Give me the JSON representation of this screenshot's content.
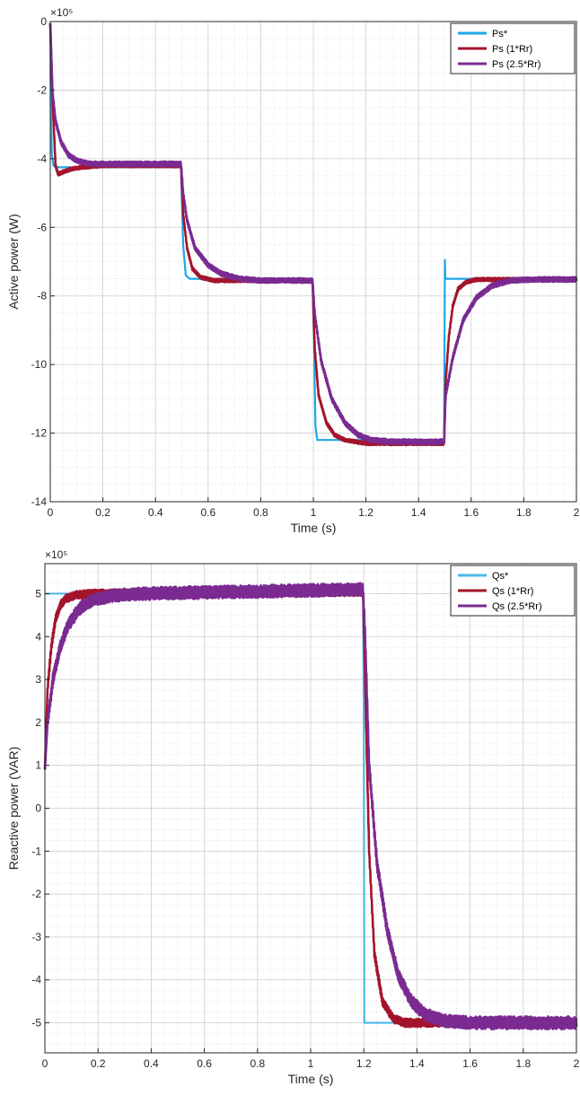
{
  "chart_data": [
    {
      "type": "line",
      "xlabel": "Time (s)",
      "ylabel": "Active power (W)",
      "exponent_label": "×10⁵",
      "xlim": [
        0,
        2
      ],
      "ylim": [
        -14,
        0
      ],
      "y_scale_factor": 100000,
      "xticks": [
        "0",
        "0.2",
        "0.4",
        "0.6",
        "0.8",
        "1",
        "1.2",
        "1.4",
        "1.6",
        "1.8",
        "2"
      ],
      "yticks": [
        "-14",
        "-12",
        "-10",
        "-8",
        "-6",
        "-4",
        "-2",
        "0"
      ],
      "grid": true,
      "minor_grid": true,
      "legend_position": "top-right",
      "series": [
        {
          "name": "Ps*",
          "color": "#1fa7e6",
          "points": [
            [
              0,
              -0.05
            ],
            [
              0.002,
              -2.5
            ],
            [
              0.006,
              -3.9
            ],
            [
              0.012,
              -4.2
            ],
            [
              0.02,
              -4.25
            ],
            [
              0.497,
              -4.25
            ],
            [
              0.505,
              -6.5
            ],
            [
              0.515,
              -7.4
            ],
            [
              0.53,
              -7.5
            ],
            [
              0.997,
              -7.5
            ],
            [
              1.003,
              -9.5
            ],
            [
              1.008,
              -11.8
            ],
            [
              1.015,
              -12.2
            ],
            [
              1.497,
              -12.2
            ],
            [
              1.5,
              -6.95
            ],
            [
              1.502,
              -7.5
            ],
            [
              2.0,
              -7.5
            ]
          ]
        },
        {
          "name": "Ps (1*Rr)",
          "color": "#a3142c",
          "noise": 0.05,
          "points": [
            [
              0,
              -0.05
            ],
            [
              0.01,
              -2.5
            ],
            [
              0.02,
              -4.2
            ],
            [
              0.03,
              -4.45
            ],
            [
              0.05,
              -4.38
            ],
            [
              0.08,
              -4.3
            ],
            [
              0.12,
              -4.25
            ],
            [
              0.2,
              -4.2
            ],
            [
              0.497,
              -4.2
            ],
            [
              0.505,
              -5.6
            ],
            [
              0.52,
              -6.6
            ],
            [
              0.54,
              -7.2
            ],
            [
              0.57,
              -7.45
            ],
            [
              0.62,
              -7.55
            ],
            [
              0.7,
              -7.55
            ],
            [
              0.997,
              -7.55
            ],
            [
              1.005,
              -9.5
            ],
            [
              1.02,
              -10.9
            ],
            [
              1.05,
              -11.7
            ],
            [
              1.08,
              -12.05
            ],
            [
              1.12,
              -12.2
            ],
            [
              1.2,
              -12.3
            ],
            [
              1.497,
              -12.3
            ],
            [
              1.503,
              -10.5
            ],
            [
              1.515,
              -9.2
            ],
            [
              1.53,
              -8.3
            ],
            [
              1.55,
              -7.8
            ],
            [
              1.58,
              -7.6
            ],
            [
              1.62,
              -7.52
            ],
            [
              2.0,
              -7.52
            ]
          ]
        },
        {
          "name": "Ps (2.5*Rr)",
          "color": "#7a2a91",
          "noise": 0.07,
          "points": [
            [
              0,
              -0.05
            ],
            [
              0.008,
              -2.0
            ],
            [
              0.02,
              -2.9
            ],
            [
              0.04,
              -3.5
            ],
            [
              0.07,
              -3.9
            ],
            [
              0.1,
              -4.05
            ],
            [
              0.15,
              -4.15
            ],
            [
              0.2,
              -4.15
            ],
            [
              0.497,
              -4.15
            ],
            [
              0.505,
              -5.0
            ],
            [
              0.52,
              -5.8
            ],
            [
              0.55,
              -6.6
            ],
            [
              0.6,
              -7.1
            ],
            [
              0.65,
              -7.35
            ],
            [
              0.72,
              -7.5
            ],
            [
              0.8,
              -7.55
            ],
            [
              0.997,
              -7.55
            ],
            [
              1.005,
              -8.5
            ],
            [
              1.03,
              -9.9
            ],
            [
              1.07,
              -11.0
            ],
            [
              1.12,
              -11.7
            ],
            [
              1.17,
              -12.05
            ],
            [
              1.22,
              -12.2
            ],
            [
              1.3,
              -12.25
            ],
            [
              1.497,
              -12.25
            ],
            [
              1.503,
              -10.9
            ],
            [
              1.53,
              -9.8
            ],
            [
              1.57,
              -8.7
            ],
            [
              1.62,
              -8.05
            ],
            [
              1.68,
              -7.7
            ],
            [
              1.75,
              -7.55
            ],
            [
              1.85,
              -7.52
            ],
            [
              2.0,
              -7.52
            ]
          ]
        }
      ]
    },
    {
      "type": "line",
      "xlabel": "Time (s)",
      "ylabel": "Reactive power (VAR)",
      "exponent_label": "×10⁵",
      "xlim": [
        0,
        2
      ],
      "ylim": [
        -5.7,
        5.7
      ],
      "y_scale_factor": 100000,
      "xticks": [
        "0",
        "0.2",
        "0.4",
        "0.6",
        "0.8",
        "1",
        "1.2",
        "1.4",
        "1.6",
        "1.8",
        "2"
      ],
      "yticks": [
        "-5",
        "-4",
        "-3",
        "-2",
        "-1",
        "0",
        "1",
        "2",
        "3",
        "4",
        "5"
      ],
      "grid": true,
      "minor_grid": true,
      "legend_position": "top-right",
      "series": [
        {
          "name": "Qs*",
          "color": "#4db8e8",
          "points": [
            [
              0,
              5.0
            ],
            [
              1.197,
              5.0
            ],
            [
              1.2,
              2.0
            ],
            [
              1.202,
              -5.0
            ],
            [
              2.0,
              -5.0
            ]
          ]
        },
        {
          "name": "Qs (1*Rr)",
          "color": "#a3142c",
          "noise": 0.1,
          "points": [
            [
              0,
              0.9
            ],
            [
              0.01,
              2.8
            ],
            [
              0.025,
              3.8
            ],
            [
              0.04,
              4.4
            ],
            [
              0.06,
              4.75
            ],
            [
              0.08,
              4.9
            ],
            [
              0.12,
              4.97
            ],
            [
              0.2,
              5.0
            ],
            [
              1.197,
              5.05
            ],
            [
              1.205,
              3.0
            ],
            [
              1.22,
              -1.0
            ],
            [
              1.24,
              -3.4
            ],
            [
              1.27,
              -4.5
            ],
            [
              1.31,
              -4.9
            ],
            [
              1.35,
              -5.0
            ],
            [
              2.0,
              -5.0
            ]
          ]
        },
        {
          "name": "Qs (2.5*Rr)",
          "color": "#7a2a91",
          "noise": 0.15,
          "points": [
            [
              0,
              0.9
            ],
            [
              0.01,
              2.0
            ],
            [
              0.03,
              3.0
            ],
            [
              0.06,
              3.8
            ],
            [
              0.09,
              4.3
            ],
            [
              0.13,
              4.65
            ],
            [
              0.18,
              4.85
            ],
            [
              0.25,
              4.95
            ],
            [
              0.35,
              5.0
            ],
            [
              1.197,
              5.1
            ],
            [
              1.205,
              4.0
            ],
            [
              1.22,
              1.0
            ],
            [
              1.25,
              -1.3
            ],
            [
              1.29,
              -2.9
            ],
            [
              1.33,
              -3.9
            ],
            [
              1.38,
              -4.5
            ],
            [
              1.43,
              -4.8
            ],
            [
              1.5,
              -4.95
            ],
            [
              1.6,
              -5.0
            ],
            [
              2.0,
              -5.0
            ]
          ]
        }
      ]
    }
  ]
}
